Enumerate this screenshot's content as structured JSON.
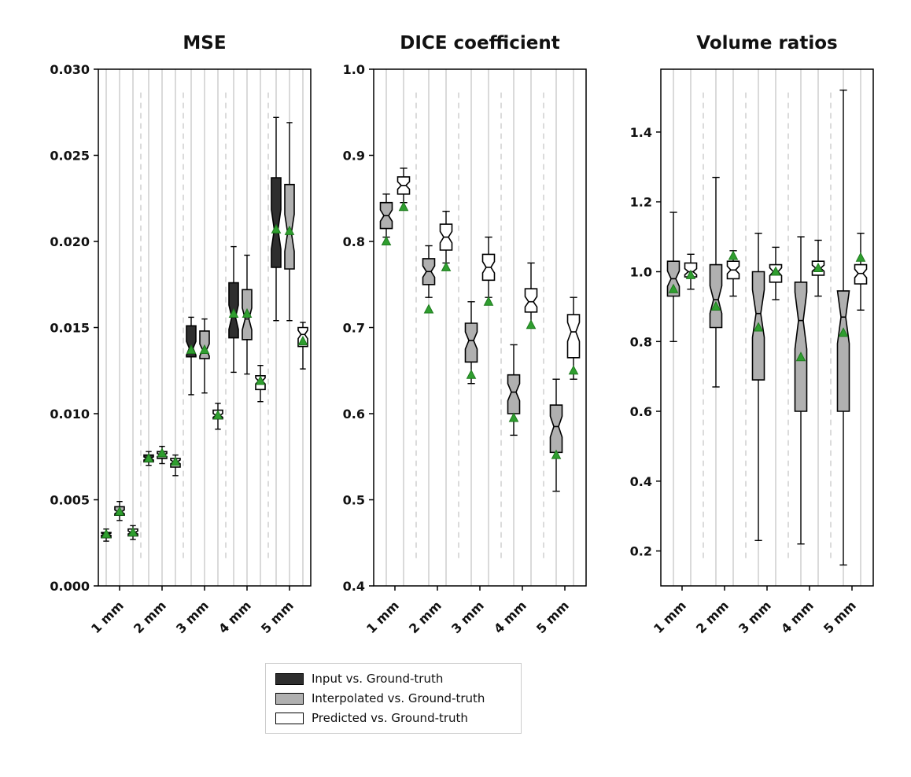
{
  "figure": {
    "background": "#ffffff",
    "legend": {
      "entries": [
        {
          "label": "Input vs. Ground-truth",
          "fill": "#2e2e2e"
        },
        {
          "label": "Interpolated vs. Ground-truth",
          "fill": "#b0b0b0"
        },
        {
          "label": "Predicted vs. Ground-truth",
          "fill": "#ffffff"
        }
      ],
      "edge_color": "#cccccc"
    },
    "colors": {
      "box_edge": "#000000",
      "mean_marker_fill": "#2f9e2f",
      "mean_marker_edge": "#1e7a1e",
      "grid_solid": "#b5b5b5",
      "grid_dashed": "#cfcfcf",
      "axis": "#000000"
    },
    "mean_marker_shape": "triangle-up"
  },
  "chart_data": [
    {
      "id": "mse",
      "type": "boxplot",
      "title": "MSE",
      "notched": true,
      "grid": "vertical-solid-per-box-plus-dashed-group-separators",
      "categories": [
        "1 mm",
        "2 mm",
        "3 mm",
        "4 mm",
        "5 mm"
      ],
      "ylim": [
        0.0,
        0.03
      ],
      "yticks": [
        0.0,
        0.005,
        0.01,
        0.015,
        0.02,
        0.025,
        0.03
      ],
      "ytick_labels": [
        "0.000",
        "0.005",
        "0.010",
        "0.015",
        "0.020",
        "0.025",
        "0.030"
      ],
      "series": [
        {
          "key": "input",
          "name": "Input vs. Ground-truth",
          "fill": "#2e2e2e",
          "boxes": [
            {
              "whislo": 0.0026,
              "q1": 0.0028,
              "med": 0.003,
              "q3": 0.0031,
              "whishi": 0.0033,
              "mean": 0.003
            },
            {
              "whislo": 0.007,
              "q1": 0.0072,
              "med": 0.0074,
              "q3": 0.0076,
              "whishi": 0.0078,
              "mean": 0.0074
            },
            {
              "whislo": 0.0111,
              "q1": 0.0133,
              "med": 0.0138,
              "q3": 0.0151,
              "whishi": 0.0156,
              "mean": 0.0137
            },
            {
              "whislo": 0.0124,
              "q1": 0.0144,
              "med": 0.0156,
              "q3": 0.0176,
              "whishi": 0.0197,
              "mean": 0.0158
            },
            {
              "whislo": 0.0154,
              "q1": 0.0185,
              "med": 0.0207,
              "q3": 0.0237,
              "whishi": 0.0272,
              "mean": 0.0207
            }
          ]
        },
        {
          "key": "interpolated",
          "name": "Interpolated vs. Ground-truth",
          "fill": "#b0b0b0",
          "boxes": [
            {
              "whislo": 0.0038,
              "q1": 0.0041,
              "med": 0.0043,
              "q3": 0.0046,
              "whishi": 0.0049,
              "mean": 0.0043
            },
            {
              "whislo": 0.0071,
              "q1": 0.0074,
              "med": 0.0076,
              "q3": 0.0078,
              "whishi": 0.0081,
              "mean": 0.0077
            },
            {
              "whislo": 0.0112,
              "q1": 0.0132,
              "med": 0.0137,
              "q3": 0.0148,
              "whishi": 0.0155,
              "mean": 0.0137
            },
            {
              "whislo": 0.0123,
              "q1": 0.0143,
              "med": 0.0155,
              "q3": 0.0172,
              "whishi": 0.0192,
              "mean": 0.0158
            },
            {
              "whislo": 0.0154,
              "q1": 0.0184,
              "med": 0.0205,
              "q3": 0.0233,
              "whishi": 0.0269,
              "mean": 0.0206
            }
          ]
        },
        {
          "key": "predicted",
          "name": "Predicted vs. Ground-truth",
          "fill": "#ffffff",
          "boxes": [
            {
              "whislo": 0.0027,
              "q1": 0.0029,
              "med": 0.0031,
              "q3": 0.0033,
              "whishi": 0.0035,
              "mean": 0.0031
            },
            {
              "whislo": 0.0064,
              "q1": 0.0069,
              "med": 0.0072,
              "q3": 0.0074,
              "whishi": 0.0076,
              "mean": 0.0072
            },
            {
              "whislo": 0.0091,
              "q1": 0.0097,
              "med": 0.0099,
              "q3": 0.0102,
              "whishi": 0.0106,
              "mean": 0.0099
            },
            {
              "whislo": 0.0107,
              "q1": 0.0114,
              "med": 0.0119,
              "q3": 0.0122,
              "whishi": 0.0128,
              "mean": 0.0119
            },
            {
              "whislo": 0.0126,
              "q1": 0.0139,
              "med": 0.0146,
              "q3": 0.015,
              "whishi": 0.0153,
              "mean": 0.0142
            }
          ]
        }
      ]
    },
    {
      "id": "dice",
      "type": "boxplot",
      "title": "DICE coefficient",
      "notched": true,
      "grid": "vertical-solid-per-box-plus-dashed-group-separators",
      "categories": [
        "1 mm",
        "2 mm",
        "3 mm",
        "4 mm",
        "5 mm"
      ],
      "ylim": [
        0.4,
        1.0
      ],
      "yticks": [
        0.4,
        0.5,
        0.6,
        0.7,
        0.8,
        0.9,
        1.0
      ],
      "ytick_labels": [
        "0.4",
        "0.5",
        "0.6",
        "0.7",
        "0.8",
        "0.9",
        "1.0"
      ],
      "series": [
        {
          "key": "interpolated",
          "name": "Interpolated vs. Ground-truth",
          "fill": "#b0b0b0",
          "boxes": [
            {
              "whislo": 0.805,
              "q1": 0.815,
              "med": 0.83,
              "q3": 0.845,
              "whishi": 0.855,
              "mean": 0.8
            },
            {
              "whislo": 0.735,
              "q1": 0.75,
              "med": 0.765,
              "q3": 0.78,
              "whishi": 0.795,
              "mean": 0.721
            },
            {
              "whislo": 0.635,
              "q1": 0.66,
              "med": 0.685,
              "q3": 0.705,
              "whishi": 0.73,
              "mean": 0.645
            },
            {
              "whislo": 0.575,
              "q1": 0.6,
              "med": 0.625,
              "q3": 0.645,
              "whishi": 0.68,
              "mean": 0.595
            },
            {
              "whislo": 0.51,
              "q1": 0.555,
              "med": 0.585,
              "q3": 0.61,
              "whishi": 0.64,
              "mean": 0.552
            }
          ]
        },
        {
          "key": "predicted",
          "name": "Predicted vs. Ground-truth",
          "fill": "#ffffff",
          "boxes": [
            {
              "whislo": 0.845,
              "q1": 0.855,
              "med": 0.865,
              "q3": 0.875,
              "whishi": 0.885,
              "mean": 0.84
            },
            {
              "whislo": 0.775,
              "q1": 0.79,
              "med": 0.805,
              "q3": 0.82,
              "whishi": 0.835,
              "mean": 0.77
            },
            {
              "whislo": 0.735,
              "q1": 0.755,
              "med": 0.77,
              "q3": 0.785,
              "whishi": 0.805,
              "mean": 0.73
            },
            {
              "whislo": 0.7,
              "q1": 0.718,
              "med": 0.73,
              "q3": 0.745,
              "whishi": 0.775,
              "mean": 0.703
            },
            {
              "whislo": 0.64,
              "q1": 0.665,
              "med": 0.695,
              "q3": 0.715,
              "whishi": 0.735,
              "mean": 0.65
            }
          ]
        }
      ]
    },
    {
      "id": "volume_ratios",
      "type": "boxplot",
      "title": "Volume ratios",
      "notched": true,
      "grid": "vertical-solid-per-box-plus-dashed-group-separators",
      "categories": [
        "1 mm",
        "2 mm",
        "3 mm",
        "4 mm",
        "5 mm"
      ],
      "ylim": [
        0.1,
        1.58
      ],
      "yticks": [
        0.2,
        0.4,
        0.6,
        0.8,
        1.0,
        1.2,
        1.4
      ],
      "ytick_labels": [
        "0.2",
        "0.4",
        "0.6",
        "0.8",
        "1.0",
        "1.2",
        "1.4"
      ],
      "series": [
        {
          "key": "interpolated",
          "name": "Interpolated vs. Ground-truth",
          "fill": "#b0b0b0",
          "boxes": [
            {
              "whislo": 0.8,
              "q1": 0.93,
              "med": 0.98,
              "q3": 1.03,
              "whishi": 1.17,
              "mean": 0.95
            },
            {
              "whislo": 0.67,
              "q1": 0.84,
              "med": 0.92,
              "q3": 1.02,
              "whishi": 1.27,
              "mean": 0.9
            },
            {
              "whislo": 0.23,
              "q1": 0.69,
              "med": 0.88,
              "q3": 1.0,
              "whishi": 1.11,
              "mean": 0.84
            },
            {
              "whislo": 0.22,
              "q1": 0.6,
              "med": 0.86,
              "q3": 0.97,
              "whishi": 1.1,
              "mean": 0.755
            },
            {
              "whislo": 0.16,
              "q1": 0.6,
              "med": 0.87,
              "q3": 0.945,
              "whishi": 1.52,
              "mean": 0.825
            }
          ]
        },
        {
          "key": "predicted",
          "name": "Predicted vs. Ground-truth",
          "fill": "#ffffff",
          "boxes": [
            {
              "whislo": 0.95,
              "q1": 0.985,
              "med": 1.0,
              "q3": 1.025,
              "whishi": 1.05,
              "mean": 0.99
            },
            {
              "whislo": 0.93,
              "q1": 0.98,
              "med": 1.005,
              "q3": 1.03,
              "whishi": 1.06,
              "mean": 1.045
            },
            {
              "whislo": 0.92,
              "q1": 0.97,
              "med": 1.0,
              "q3": 1.02,
              "whishi": 1.07,
              "mean": 1.0
            },
            {
              "whislo": 0.93,
              "q1": 0.99,
              "med": 1.01,
              "q3": 1.03,
              "whishi": 1.09,
              "mean": 1.01
            },
            {
              "whislo": 0.89,
              "q1": 0.965,
              "med": 0.995,
              "q3": 1.02,
              "whishi": 1.11,
              "mean": 1.04
            }
          ]
        }
      ]
    }
  ]
}
